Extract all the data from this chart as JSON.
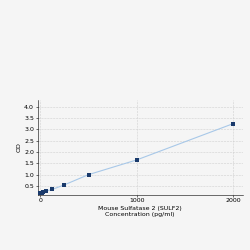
{
  "x_data": [
    0,
    15.625,
    31.25,
    62.5,
    125,
    250,
    500,
    1000,
    2000
  ],
  "y_data": [
    0.2,
    0.21,
    0.23,
    0.28,
    0.35,
    0.55,
    1.0,
    1.65,
    3.25
  ],
  "line_color": "#a8c8e8",
  "marker_color": "#1a3a6b",
  "marker_size": 3,
  "xlabel_line1": "Mouse Sulfatase 2 (SULF2)",
  "xlabel_line2": "Concentration (pg/ml)",
  "ylabel": "OD",
  "xlim": [
    -30,
    2100
  ],
  "ylim": [
    0.1,
    4.3
  ],
  "xticks": [
    0,
    1000,
    2000
  ],
  "yticks": [
    0.5,
    1.0,
    1.5,
    2.0,
    2.5,
    3.0,
    3.5,
    4.0
  ],
  "grid_color": "#cccccc",
  "bg_color": "#f5f5f5",
  "axis_fontsize": 4.5,
  "tick_fontsize": 4.5
}
